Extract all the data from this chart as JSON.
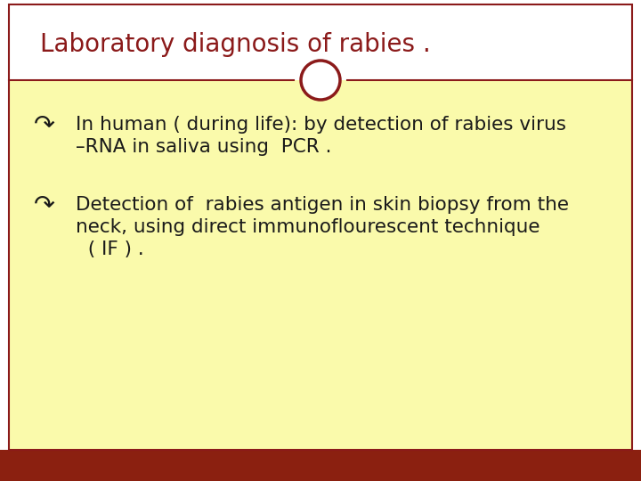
{
  "title": "Laboratory diagnosis of rabies .",
  "title_color": "#8B1A1A",
  "title_fontsize": 20,
  "title_font": "Georgia",
  "bg_color": "#FFFFFF",
  "content_bg_color": "#FAFAAB",
  "header_bg_color": "#FFFFFF",
  "bottom_bar_color": "#8B2010",
  "divider_color": "#8B1A1A",
  "circle_facecolor": "#FFFFFF",
  "circle_edgecolor": "#8B1A1A",
  "bullet_symbol": "↷",
  "bullet_color": "#1A1A1A",
  "text_color": "#1A1A1A",
  "content_fontsize": 15.5,
  "content_font": "Georgia",
  "bullet1_line1": "In human ( during life): by detection of rabies virus",
  "bullet1_line2": "–RNA in saliva using  PCR .",
  "bullet2_line1": "Detection of  rabies antigen in skin biopsy from the",
  "bullet2_line2": "neck, using direct immunoflourescent technique",
  "bullet2_line3": "  ( IF ) .",
  "figwidth": 7.2,
  "figheight": 5.4,
  "dpi": 100
}
